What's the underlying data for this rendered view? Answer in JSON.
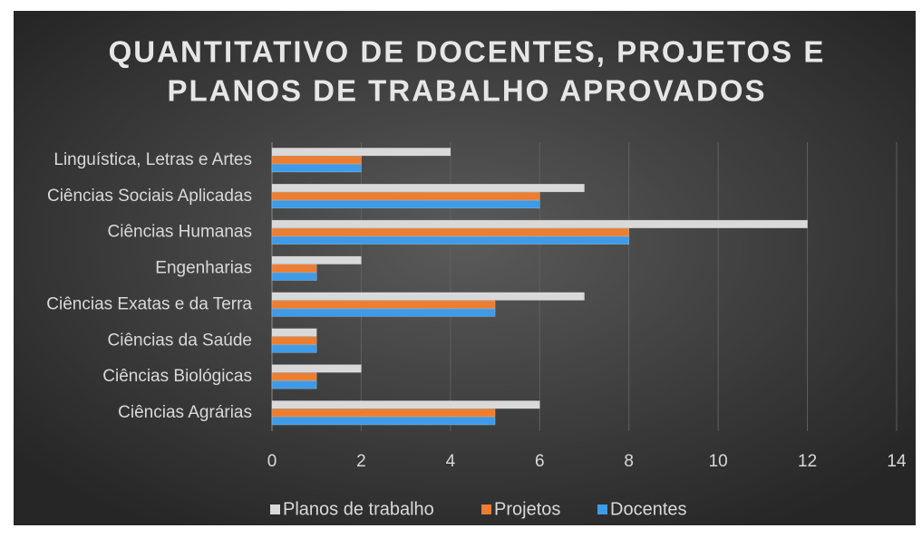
{
  "chart_data": {
    "type": "hbar",
    "title": [
      "QUANTITATIVO DE DOCENTES, PROJETOS E",
      "PLANOS DE TRABALHO APROVADOS"
    ],
    "categories": [
      "Linguística, Letras e Artes",
      "Ciências Sociais Aplicadas",
      "Ciências Humanas",
      "Engenharias",
      "Ciências Exatas e da Terra",
      "Ciências da Saúde",
      "Ciências Biológicas",
      "Ciências Agrárias"
    ],
    "series": [
      {
        "name": "Planos de trabalho",
        "color": "#d9d9d9",
        "values": [
          4,
          7,
          12,
          2,
          7,
          1,
          2,
          6
        ]
      },
      {
        "name": "Projetos",
        "color": "#ed7d31",
        "values": [
          2,
          6,
          8,
          1,
          5,
          1,
          1,
          5
        ]
      },
      {
        "name": "Docentes",
        "color": "#3e9be8",
        "values": [
          2,
          6,
          8,
          1,
          5,
          1,
          1,
          5
        ]
      }
    ],
    "xlim": [
      0,
      14
    ],
    "xticks": [
      0,
      2,
      4,
      6,
      8,
      10,
      12,
      14
    ],
    "grid": true,
    "legend": "bottom"
  }
}
